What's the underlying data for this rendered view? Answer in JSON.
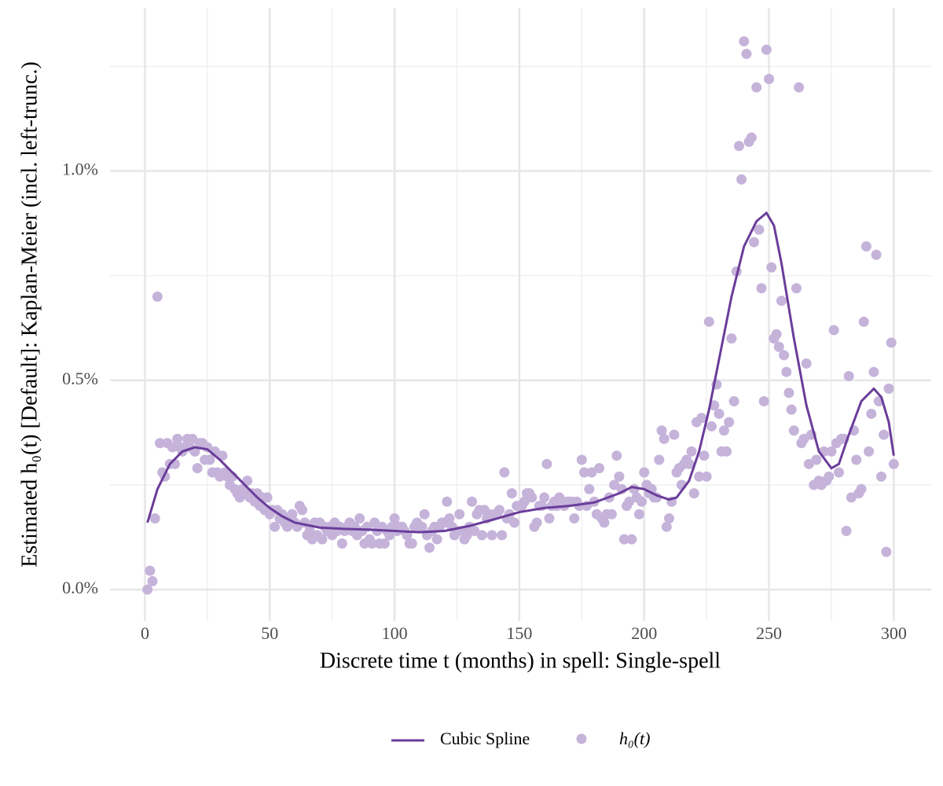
{
  "chart_data": {
    "type": "scatter",
    "x_label": "Discrete time t (months) in spell: Single-spell",
    "y_label": "Estimated  h₀(t) [Default]: Kaplan-Meier (incl. left-trunc.)",
    "xlim": [
      -14,
      315
    ],
    "ylim": [
      -0.075,
      1.39
    ],
    "xticks": [
      0,
      50,
      100,
      150,
      200,
      250,
      300
    ],
    "xminor": [
      25,
      75,
      125,
      175,
      225,
      275
    ],
    "yticks": [
      {
        "value": 0,
        "label": "0.0%"
      },
      {
        "value": 0.5,
        "label": "0.5%"
      },
      {
        "value": 1,
        "label": "1.0%"
      }
    ],
    "yminor": [
      0.25,
      0.75,
      1.25
    ],
    "grid": true,
    "legend": "bottom",
    "series": [
      {
        "name": "Cubic Spline",
        "kind": "line",
        "color": "#6a3d9a",
        "x": [
          1,
          5,
          10,
          15,
          20,
          25,
          30,
          35,
          40,
          45,
          50,
          55,
          60,
          70,
          80,
          90,
          100,
          110,
          120,
          130,
          140,
          150,
          160,
          170,
          180,
          190,
          195,
          200,
          205,
          210,
          213,
          218,
          222,
          226,
          230,
          235,
          240,
          245,
          249,
          252,
          255,
          260,
          265,
          270,
          275,
          278,
          282,
          287,
          292,
          295,
          298,
          300
        ],
        "values": [
          0.16,
          0.24,
          0.3,
          0.33,
          0.34,
          0.335,
          0.31,
          0.28,
          0.25,
          0.22,
          0.195,
          0.175,
          0.16,
          0.148,
          0.145,
          0.143,
          0.14,
          0.137,
          0.14,
          0.152,
          0.168,
          0.185,
          0.195,
          0.2,
          0.208,
          0.23,
          0.245,
          0.24,
          0.225,
          0.215,
          0.22,
          0.26,
          0.33,
          0.43,
          0.55,
          0.7,
          0.82,
          0.88,
          0.9,
          0.87,
          0.78,
          0.6,
          0.44,
          0.33,
          0.29,
          0.3,
          0.37,
          0.45,
          0.48,
          0.46,
          0.4,
          0.32
        ]
      },
      {
        "name": "h₀(t)",
        "kind": "scatter",
        "color": "#c5b3da",
        "x": [
          1,
          2,
          3,
          4,
          5,
          6,
          7,
          8,
          9,
          10,
          11,
          12,
          13,
          14,
          15,
          16,
          17,
          18,
          19,
          20,
          21,
          22,
          23,
          24,
          25,
          26,
          27,
          28,
          29,
          30,
          31,
          32,
          33,
          34,
          35,
          36,
          37,
          38,
          39,
          40,
          41,
          42,
          43,
          44,
          45,
          46,
          47,
          48,
          49,
          50,
          51,
          52,
          53,
          54,
          55,
          56,
          57,
          58,
          59,
          60,
          61,
          62,
          63,
          64,
          65,
          66,
          67,
          68,
          69,
          70,
          71,
          72,
          73,
          74,
          75,
          76,
          77,
          78,
          79,
          80,
          81,
          82,
          83,
          84,
          85,
          86,
          87,
          88,
          89,
          90,
          91,
          92,
          93,
          94,
          95,
          96,
          97,
          98,
          99,
          100,
          101,
          102,
          103,
          104,
          105,
          106,
          107,
          108,
          109,
          110,
          111,
          112,
          113,
          114,
          115,
          116,
          117,
          118,
          119,
          120,
          121,
          122,
          123,
          124,
          125,
          126,
          127,
          128,
          129,
          130,
          131,
          132,
          133,
          134,
          135,
          136,
          137,
          138,
          139,
          140,
          141,
          142,
          143,
          144,
          145,
          146,
          147,
          148,
          149,
          150,
          151,
          152,
          153,
          154,
          155,
          156,
          157,
          158,
          159,
          160,
          161,
          162,
          163,
          164,
          165,
          166,
          167,
          168,
          169,
          170,
          171,
          172,
          173,
          174,
          175,
          176,
          177,
          178,
          179,
          180,
          181,
          182,
          183,
          184,
          185,
          186,
          187,
          188,
          189,
          190,
          191,
          192,
          193,
          194,
          195,
          196,
          197,
          198,
          199,
          200,
          201,
          202,
          203,
          204,
          205,
          206,
          207,
          208,
          209,
          210,
          211,
          212,
          213,
          214,
          215,
          216,
          217,
          218,
          219,
          220,
          221,
          222,
          223,
          224,
          225,
          226,
          227,
          228,
          229,
          230,
          231,
          232,
          233,
          234,
          235,
          236,
          237,
          238,
          239,
          240,
          241,
          242,
          243,
          244,
          245,
          246,
          247,
          248,
          249,
          250,
          251,
          252,
          253,
          254,
          255,
          256,
          257,
          258,
          259,
          260,
          261,
          262,
          263,
          264,
          265,
          266,
          267,
          268,
          269,
          270,
          271,
          272,
          273,
          274,
          275,
          276,
          277,
          278,
          279,
          280,
          281,
          282,
          283,
          284,
          285,
          286,
          287,
          288,
          289,
          290,
          291,
          292,
          293,
          294,
          295,
          296,
          297,
          298,
          299,
          300
        ],
        "values": [
          0.0,
          0.045,
          0.02,
          0.17,
          0.7,
          0.35,
          0.28,
          0.27,
          0.35,
          0.3,
          0.34,
          0.3,
          0.36,
          0.34,
          0.33,
          0.34,
          0.36,
          0.34,
          0.36,
          0.33,
          0.29,
          0.35,
          0.35,
          0.31,
          0.34,
          0.31,
          0.28,
          0.33,
          0.28,
          0.27,
          0.32,
          0.28,
          0.27,
          0.25,
          0.27,
          0.24,
          0.23,
          0.22,
          0.24,
          0.23,
          0.26,
          0.22,
          0.23,
          0.21,
          0.23,
          0.2,
          0.22,
          0.19,
          0.22,
          0.18,
          0.19,
          0.15,
          0.19,
          0.17,
          0.18,
          0.16,
          0.15,
          0.17,
          0.18,
          0.16,
          0.15,
          0.2,
          0.19,
          0.16,
          0.13,
          0.14,
          0.12,
          0.16,
          0.13,
          0.16,
          0.12,
          0.15,
          0.14,
          0.15,
          0.13,
          0.16,
          0.14,
          0.15,
          0.11,
          0.14,
          0.15,
          0.16,
          0.14,
          0.15,
          0.13,
          0.17,
          0.14,
          0.11,
          0.15,
          0.12,
          0.11,
          0.16,
          0.14,
          0.11,
          0.15,
          0.11,
          0.14,
          0.13,
          0.15,
          0.17,
          0.14,
          0.15,
          0.15,
          0.14,
          0.13,
          0.11,
          0.11,
          0.15,
          0.16,
          0.15,
          0.15,
          0.18,
          0.13,
          0.1,
          0.14,
          0.15,
          0.12,
          0.15,
          0.16,
          0.16,
          0.21,
          0.17,
          0.15,
          0.13,
          0.14,
          0.18,
          0.14,
          0.12,
          0.13,
          0.15,
          0.21,
          0.14,
          0.18,
          0.19,
          0.13,
          0.19,
          0.17,
          0.18,
          0.13,
          0.18,
          0.18,
          0.19,
          0.13,
          0.28,
          0.17,
          0.18,
          0.23,
          0.16,
          0.2,
          0.2,
          0.2,
          0.21,
          0.23,
          0.23,
          0.22,
          0.15,
          0.16,
          0.2,
          0.2,
          0.22,
          0.3,
          0.17,
          0.2,
          0.21,
          0.2,
          0.22,
          0.21,
          0.2,
          0.21,
          0.21,
          0.21,
          0.17,
          0.21,
          0.2,
          0.31,
          0.28,
          0.2,
          0.24,
          0.28,
          0.21,
          0.18,
          0.29,
          0.17,
          0.16,
          0.18,
          0.22,
          0.18,
          0.25,
          0.32,
          0.27,
          0.24,
          0.12,
          0.2,
          0.21,
          0.12,
          0.24,
          0.22,
          0.18,
          0.21,
          0.28,
          0.25,
          0.23,
          0.24,
          0.22,
          0.22,
          0.31,
          0.38,
          0.36,
          0.15,
          0.17,
          0.21,
          0.37,
          0.28,
          0.29,
          0.25,
          0.3,
          0.31,
          0.3,
          0.33,
          0.23,
          0.4,
          0.27,
          0.41,
          0.32,
          0.27,
          0.64,
          0.39,
          0.44,
          0.49,
          0.42,
          0.33,
          0.38,
          0.33,
          0.4,
          0.6,
          0.45,
          0.76,
          1.06,
          0.98,
          1.31,
          1.28,
          1.07,
          1.08,
          0.83,
          1.2,
          0.86,
          0.72,
          0.45,
          1.29,
          1.22,
          0.77,
          0.6,
          0.61,
          0.58,
          0.69,
          0.56,
          0.52,
          0.47,
          0.43,
          0.38,
          0.72,
          1.2,
          0.35,
          0.36,
          0.54,
          0.3,
          0.37,
          0.25,
          0.31,
          0.26,
          0.25,
          0.33,
          0.26,
          0.27,
          0.33,
          0.62,
          0.35,
          0.28,
          0.36,
          0.36,
          0.14,
          0.51,
          0.22,
          0.38,
          0.31,
          0.23,
          0.24,
          0.64,
          0.82,
          0.33,
          0.42,
          0.52,
          0.8,
          0.45,
          0.27,
          0.37,
          0.09,
          0.48,
          0.59,
          0.3
        ]
      }
    ]
  }
}
